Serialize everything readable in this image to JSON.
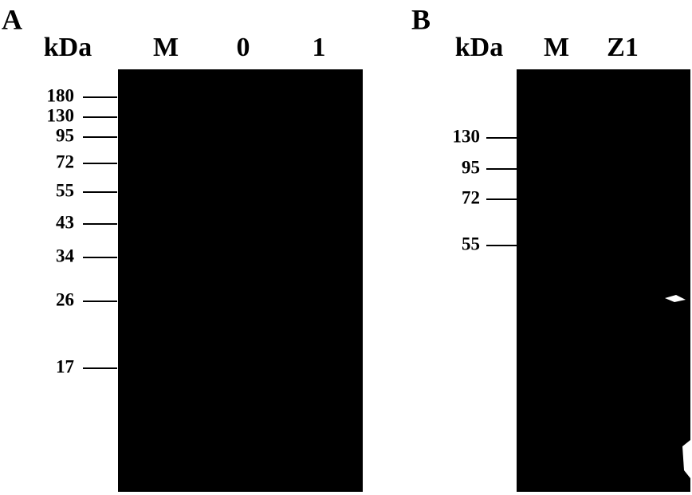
{
  "panels": [
    {
      "letter": "A",
      "unit": "kDa",
      "lanes": [
        "M",
        "0",
        "1"
      ],
      "markers": [
        "180",
        "130",
        "95",
        "72",
        "55",
        "43",
        "34",
        "26",
        "17"
      ]
    },
    {
      "letter": "B",
      "unit": "kDa",
      "lanes": [
        "M",
        "Z1"
      ],
      "markers": [
        "130",
        "95",
        "72",
        "55"
      ]
    }
  ]
}
